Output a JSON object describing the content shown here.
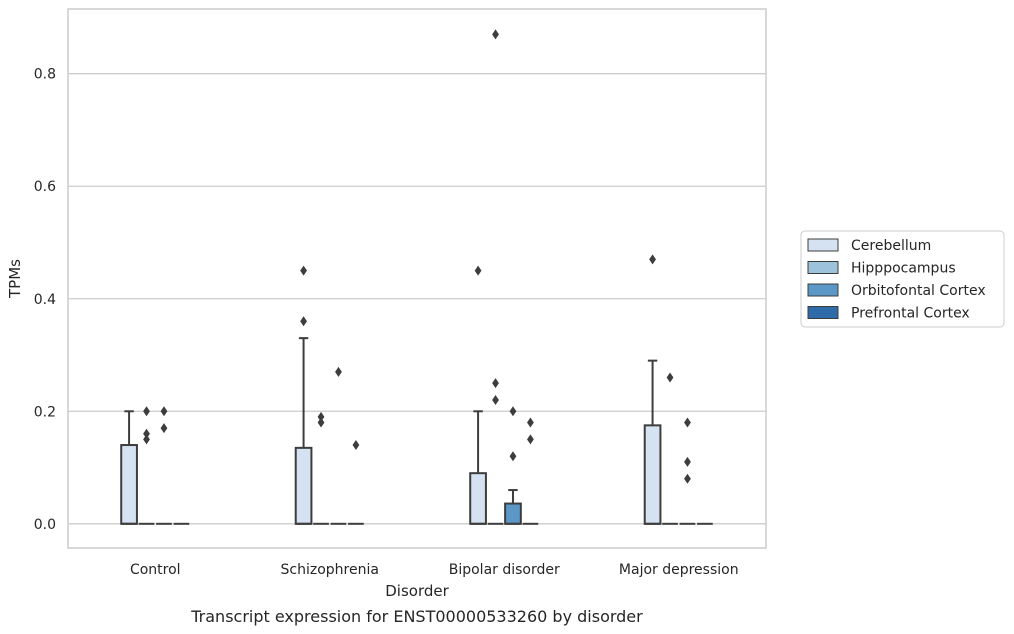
{
  "chart_data": {
    "type": "box",
    "title": "",
    "caption": "Transcript expression for ENST00000533260 by disorder",
    "xlabel": "Disorder",
    "ylabel": "TPMs",
    "ylim": [
      -0.043,
      0.915
    ],
    "yticks": [
      "0.0",
      "0.2",
      "0.4",
      "0.6",
      "0.8"
    ],
    "ytick_values": [
      0.0,
      0.2,
      0.4,
      0.6,
      0.8
    ],
    "grid": "horizontal",
    "legend_position": "right",
    "categories": [
      "Control",
      "Schizophrenia",
      "Bipolar disorder",
      "Major depression"
    ],
    "series": [
      {
        "name": "Cerebellum",
        "color": "#d4e2f1",
        "boxes": [
          {
            "q1": 0.0,
            "median": 0.0,
            "q3": 0.14,
            "whisker_low": 0.0,
            "whisker_high": 0.2,
            "outliers": []
          },
          {
            "q1": 0.0,
            "median": 0.0,
            "q3": 0.135,
            "whisker_low": 0.0,
            "whisker_high": 0.33,
            "outliers": [
              0.45,
              0.36
            ]
          },
          {
            "q1": 0.0,
            "median": 0.0,
            "q3": 0.09,
            "whisker_low": 0.0,
            "whisker_high": 0.2,
            "outliers": [
              0.45
            ]
          },
          {
            "q1": 0.0,
            "median": 0.0,
            "q3": 0.175,
            "whisker_low": 0.0,
            "whisker_high": 0.29,
            "outliers": [
              0.47
            ]
          }
        ]
      },
      {
        "name": "Hipppocampus",
        "color": "#9cc2dc",
        "boxes": [
          {
            "q1": 0.0,
            "median": 0.0,
            "q3": 0.0,
            "whisker_low": 0.0,
            "whisker_high": 0.0,
            "outliers": [
              0.2,
              0.16,
              0.15
            ]
          },
          {
            "q1": 0.0,
            "median": 0.0,
            "q3": 0.0,
            "whisker_low": 0.0,
            "whisker_high": 0.0,
            "outliers": [
              0.19,
              0.18
            ]
          },
          {
            "q1": 0.0,
            "median": 0.0,
            "q3": 0.0,
            "whisker_low": 0.0,
            "whisker_high": 0.0,
            "outliers": [
              0.87,
              0.25,
              0.22
            ]
          },
          {
            "q1": 0.0,
            "median": 0.0,
            "q3": 0.0,
            "whisker_low": 0.0,
            "whisker_high": 0.0,
            "outliers": [
              0.26
            ]
          }
        ]
      },
      {
        "name": "Orbitofontal Cortex",
        "color": "#5b98c8",
        "boxes": [
          {
            "q1": 0.0,
            "median": 0.0,
            "q3": 0.0,
            "whisker_low": 0.0,
            "whisker_high": 0.0,
            "outliers": [
              0.2,
              0.17
            ]
          },
          {
            "q1": 0.0,
            "median": 0.0,
            "q3": 0.0,
            "whisker_low": 0.0,
            "whisker_high": 0.0,
            "outliers": [
              0.27
            ]
          },
          {
            "q1": 0.0,
            "median": 0.0,
            "q3": 0.036,
            "whisker_low": 0.0,
            "whisker_high": 0.06,
            "outliers": [
              0.2,
              0.12
            ]
          },
          {
            "q1": 0.0,
            "median": 0.0,
            "q3": 0.0,
            "whisker_low": 0.0,
            "whisker_high": 0.0,
            "outliers": [
              0.18,
              0.11,
              0.08
            ]
          }
        ]
      },
      {
        "name": "Prefrontal Cortex",
        "color": "#2e6ba8",
        "boxes": [
          {
            "q1": 0.0,
            "median": 0.0,
            "q3": 0.0,
            "whisker_low": 0.0,
            "whisker_high": 0.0,
            "outliers": []
          },
          {
            "q1": 0.0,
            "median": 0.0,
            "q3": 0.0,
            "whisker_low": 0.0,
            "whisker_high": 0.0,
            "outliers": [
              0.14
            ]
          },
          {
            "q1": 0.0,
            "median": 0.0,
            "q3": 0.0,
            "whisker_low": 0.0,
            "whisker_high": 0.0,
            "outliers": [
              0.18,
              0.15
            ]
          },
          {
            "q1": 0.0,
            "median": 0.0,
            "q3": 0.0,
            "whisker_low": 0.0,
            "whisker_high": 0.0,
            "outliers": []
          }
        ]
      }
    ]
  }
}
